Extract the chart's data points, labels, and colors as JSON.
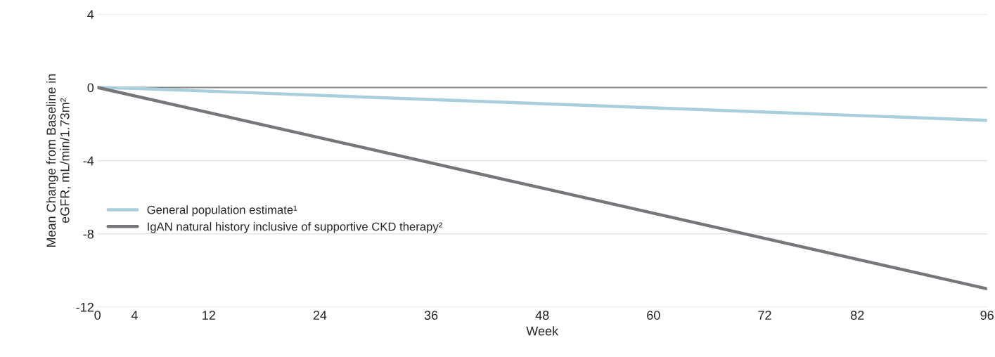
{
  "chart_data": {
    "type": "line",
    "xlabel": "Week",
    "ylabel": "Mean Change from Baseline in\neGFR, mL/min/1.73m²",
    "series": [
      {
        "name": "General population estimate¹",
        "color": "#a9cfdc",
        "x": [
          0,
          4,
          96
        ],
        "values": [
          0,
          -0.05,
          -1.8
        ]
      },
      {
        "name": "IgAN natural history inclusive of supportive CKD therapy²",
        "color": "#77767b",
        "x": [
          0,
          96
        ],
        "values": [
          0,
          -11.0
        ]
      }
    ],
    "xlim": [
      0,
      96
    ],
    "xticks": [
      0,
      4,
      12,
      24,
      36,
      48,
      60,
      72,
      82,
      96
    ],
    "ylim": [
      -12,
      4
    ],
    "yticks": [
      -12,
      -8,
      -4,
      0,
      4
    ],
    "ref_lines": [
      {
        "axis": "y",
        "value": 0,
        "color": "#8a8a8a"
      }
    ],
    "grid": "y",
    "legend": "left",
    "marker": "none",
    "line_style": "solid"
  }
}
